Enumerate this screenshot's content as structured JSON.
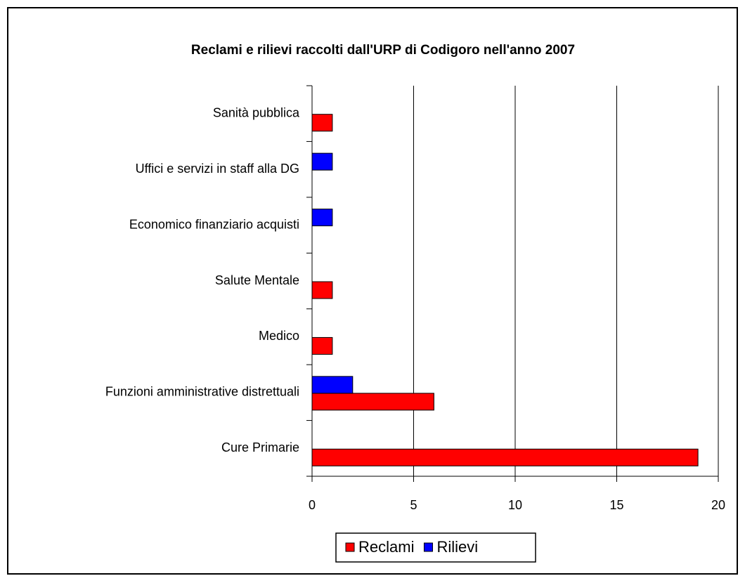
{
  "chart_data": {
    "type": "bar",
    "orientation": "horizontal",
    "title": "Reclami e rilievi raccolti dall'URP di Codigoro nell'anno 2007",
    "categories": [
      "Sanità pubblica",
      "Uffici e servizi in staff alla DG",
      "Economico finanziario acquisti",
      "Salute Mentale",
      "Medico",
      "Funzioni amministrative distrettuali",
      "Cure Primarie"
    ],
    "series": [
      {
        "name": "Reclami",
        "color": "#ff0000",
        "values": [
          1,
          0,
          0,
          1,
          1,
          6,
          19
        ]
      },
      {
        "name": "Rilievi",
        "color": "#0000ff",
        "values": [
          0,
          1,
          1,
          0,
          0,
          2,
          0
        ]
      }
    ],
    "xlim": [
      0,
      20
    ],
    "xticks": [
      0,
      5,
      10,
      15,
      20
    ],
    "grid": true,
    "legend": "bottom"
  }
}
